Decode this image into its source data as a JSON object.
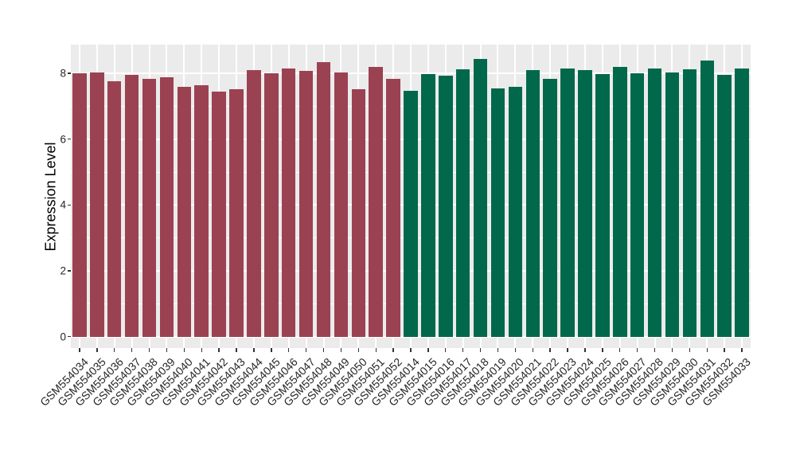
{
  "chart_data": {
    "type": "bar",
    "title": "",
    "xlabel": "",
    "ylabel": "Expression Level",
    "legend": "none",
    "grid": "on",
    "panel_background": "#EBEBEB",
    "gridline_color": "#FFFFFF",
    "yticks": [
      0,
      2,
      4,
      6,
      8
    ],
    "ylim": [
      0,
      8.85
    ],
    "categories": [
      "GSM554034",
      "GSM554035",
      "GSM554036",
      "GSM554037",
      "GSM554038",
      "GSM554039",
      "GSM554040",
      "GSM554041",
      "GSM554042",
      "GSM554043",
      "GSM554044",
      "GSM554045",
      "GSM554046",
      "GSM554047",
      "GSM554048",
      "GSM554049",
      "GSM554050",
      "GSM554051",
      "GSM554052",
      "GSM554014",
      "GSM554015",
      "GSM554016",
      "GSM554017",
      "GSM554018",
      "GSM554019",
      "GSM554020",
      "GSM554021",
      "GSM554022",
      "GSM554023",
      "GSM554024",
      "GSM554025",
      "GSM554026",
      "GSM554027",
      "GSM554028",
      "GSM554029",
      "GSM554030",
      "GSM554031",
      "GSM554032",
      "GSM554033"
    ],
    "values": [
      8.0,
      8.03,
      7.75,
      7.95,
      7.83,
      7.87,
      7.6,
      7.65,
      7.45,
      7.52,
      8.1,
      8.0,
      8.16,
      8.08,
      8.33,
      8.02,
      7.51,
      8.2,
      7.83,
      7.47,
      7.99,
      7.94,
      8.13,
      8.44,
      7.55,
      7.6,
      8.1,
      7.84,
      8.16,
      8.1,
      7.99,
      8.2,
      8.01,
      8.14,
      8.03,
      8.13,
      8.4,
      7.95,
      8.14
    ],
    "groups": [
      "group1",
      "group1",
      "group1",
      "group1",
      "group1",
      "group1",
      "group1",
      "group1",
      "group1",
      "group1",
      "group1",
      "group1",
      "group1",
      "group1",
      "group1",
      "group1",
      "group1",
      "group1",
      "group1",
      "group2",
      "group2",
      "group2",
      "group2",
      "group2",
      "group2",
      "group2",
      "group2",
      "group2",
      "group2",
      "group2",
      "group2",
      "group2",
      "group2",
      "group2",
      "group2",
      "group2",
      "group2",
      "group2",
      "group2"
    ],
    "group_colors": {
      "group1": "#9B4252",
      "group2": "#02684C"
    }
  }
}
